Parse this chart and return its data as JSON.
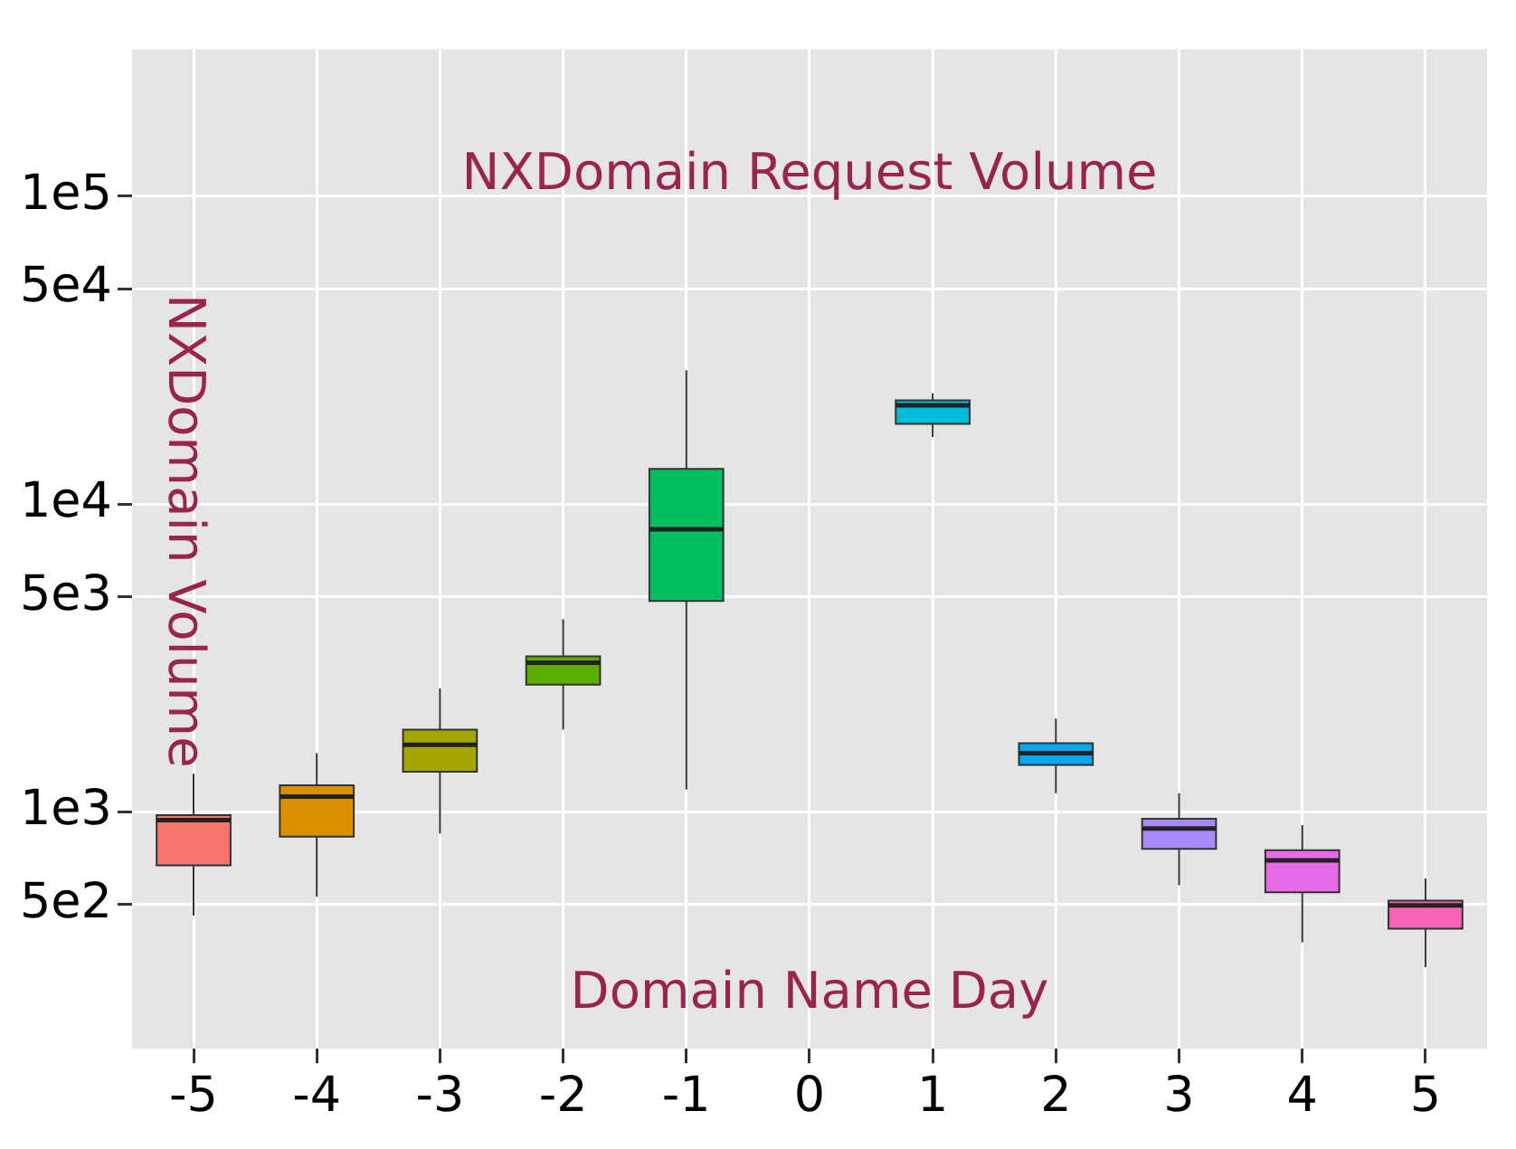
{
  "chart_data": {
    "type": "box",
    "title": "NXDomain Request Volume",
    "xlabel": "Domain Name Day",
    "ylabel": "NXDomain Volume",
    "categories": [
      "-5",
      "-4",
      "-3",
      "-2",
      "-1",
      "0",
      "1",
      "2",
      "3",
      "4",
      "5"
    ],
    "boxes": [
      {
        "low": 460,
        "q1": 670,
        "median": 940,
        "q3": 975,
        "high": 1330
      },
      {
        "low": 530,
        "q1": 830,
        "median": 1120,
        "q3": 1220,
        "high": 1550
      },
      {
        "low": 850,
        "q1": 1350,
        "median": 1650,
        "q3": 1850,
        "high": 2520
      },
      {
        "low": 1850,
        "q1": 2590,
        "median": 3050,
        "q3": 3200,
        "high": 4220
      },
      {
        "low": 1180,
        "q1": 4840,
        "median": 8280,
        "q3": 13000,
        "high": 27200
      },
      null,
      {
        "low": 16500,
        "q1": 18200,
        "median": 20900,
        "q3": 21700,
        "high": 22900
      },
      {
        "low": 1150,
        "q1": 1420,
        "median": 1550,
        "q3": 1670,
        "high": 2010
      },
      {
        "low": 577,
        "q1": 758,
        "median": 883,
        "q3": 950,
        "high": 1150
      },
      {
        "low": 377,
        "q1": 548,
        "median": 695,
        "q3": 750,
        "high": 905
      },
      {
        "low": 313,
        "q1": 417,
        "median": 497,
        "q3": 515,
        "high": 607
      }
    ],
    "colors": [
      "#F8766D",
      "#D89000",
      "#A3A500",
      "#5BAE00",
      "#00BF5F",
      "#888888",
      "#00BCD8",
      "#00A9F0",
      "#A98AF8",
      "#E76BE8",
      "#F862B8"
    ],
    "log": true,
    "ylim": [
      170,
      300000
    ],
    "yticks": [
      {
        "value": 500,
        "label": "5e2"
      },
      {
        "value": 1000,
        "label": "1e3"
      },
      {
        "value": 5000,
        "label": "5e3"
      },
      {
        "value": 10000,
        "label": "1e4"
      },
      {
        "value": 50000,
        "label": "5e4"
      },
      {
        "value": 100000,
        "label": "1e5"
      }
    ],
    "grid": true
  }
}
